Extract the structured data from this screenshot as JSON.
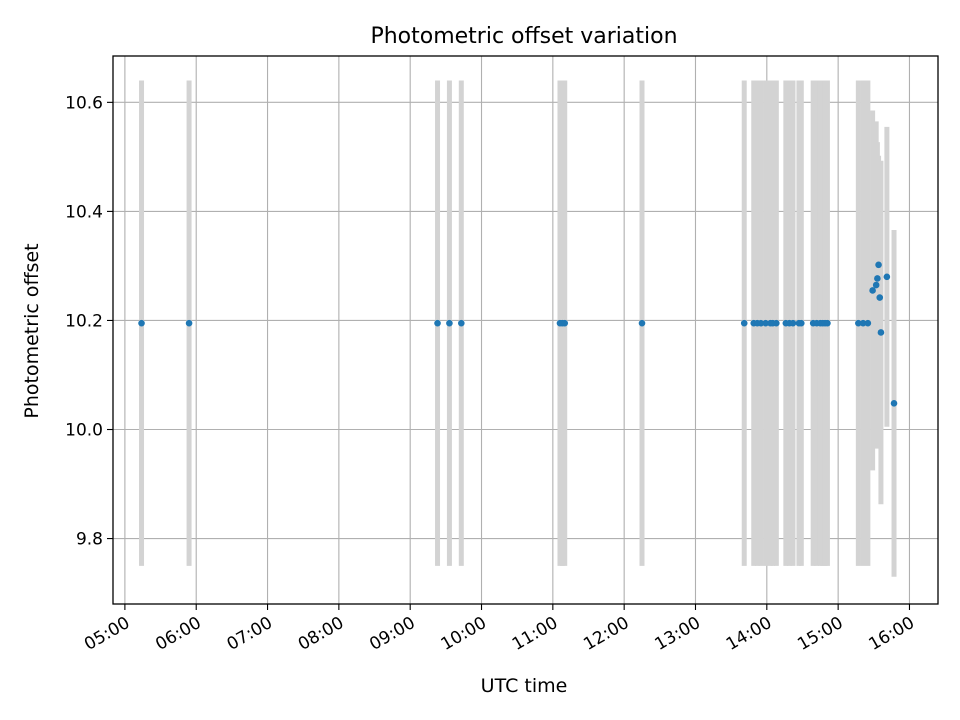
{
  "chart_data": {
    "type": "scatter",
    "title": "Photometric offset variation",
    "xlabel": "UTC time",
    "ylabel": "Photometric offset",
    "xlim": [
      "04:50",
      "16:24"
    ],
    "ylim": [
      9.68,
      10.685
    ],
    "grid": true,
    "x_ticks": [
      "05:00",
      "06:00",
      "07:00",
      "08:00",
      "09:00",
      "10:00",
      "11:00",
      "12:00",
      "13:00",
      "14:00",
      "15:00",
      "16:00"
    ],
    "y_ticks": [
      "9.8",
      "10.0",
      "10.2",
      "10.4",
      "10.6"
    ],
    "colors": {
      "marker": "#1f77b4",
      "errorbar": "#d3d3d3",
      "grid": "#b0b0b0",
      "axes": "#000000"
    },
    "series": [
      {
        "points": [
          {
            "t": "05:14",
            "y": 10.195,
            "err": 0.445
          },
          {
            "t": "05:54",
            "y": 10.195,
            "err": 0.445
          },
          {
            "t": "09:23",
            "y": 10.195,
            "err": 0.445
          },
          {
            "t": "09:33",
            "y": 10.195,
            "err": 0.445
          },
          {
            "t": "09:43",
            "y": 10.195,
            "err": 0.445
          },
          {
            "t": "11:06",
            "y": 10.195,
            "err": 0.445
          },
          {
            "t": "11:08",
            "y": 10.195,
            "err": 0.445
          },
          {
            "t": "11:10",
            "y": 10.195,
            "err": 0.445
          },
          {
            "t": "12:15",
            "y": 10.195,
            "err": 0.445
          },
          {
            "t": "13:41",
            "y": 10.195,
            "err": 0.445
          },
          {
            "t": "13:49",
            "y": 10.195,
            "err": 0.445
          },
          {
            "t": "13:52",
            "y": 10.195,
            "err": 0.445
          },
          {
            "t": "13:55",
            "y": 10.195,
            "err": 0.445
          },
          {
            "t": "13:59",
            "y": 10.195,
            "err": 0.445
          },
          {
            "t": "14:03",
            "y": 10.195,
            "err": 0.445
          },
          {
            "t": "14:05",
            "y": 10.195,
            "err": 0.445
          },
          {
            "t": "14:08",
            "y": 10.195,
            "err": 0.445
          },
          {
            "t": "14:16",
            "y": 10.195,
            "err": 0.445
          },
          {
            "t": "14:19",
            "y": 10.195,
            "err": 0.445
          },
          {
            "t": "14:22",
            "y": 10.195,
            "err": 0.445
          },
          {
            "t": "14:27",
            "y": 10.195,
            "err": 0.445
          },
          {
            "t": "14:29",
            "y": 10.195,
            "err": 0.445
          },
          {
            "t": "14:39",
            "y": 10.195,
            "err": 0.445
          },
          {
            "t": "14:42",
            "y": 10.195,
            "err": 0.445
          },
          {
            "t": "14:45",
            "y": 10.195,
            "err": 0.445
          },
          {
            "t": "14:47",
            "y": 10.195,
            "err": 0.445
          },
          {
            "t": "14:49",
            "y": 10.195,
            "err": 0.445
          },
          {
            "t": "14:51",
            "y": 10.195,
            "err": 0.445
          },
          {
            "t": "15:17",
            "y": 10.195,
            "err": 0.445
          },
          {
            "t": "15:21",
            "y": 10.195,
            "err": 0.445
          },
          {
            "t": "15:25",
            "y": 10.195,
            "err": 0.445
          },
          {
            "t": "15:29",
            "y": 10.255,
            "err": 0.33
          },
          {
            "t": "15:32",
            "y": 10.265,
            "err": 0.3
          },
          {
            "t": "15:33",
            "y": 10.277,
            "err": 0.25
          },
          {
            "t": "15:34",
            "y": 10.302,
            "err": 0.2
          },
          {
            "t": "15:35",
            "y": 10.242,
            "err": 0.25
          },
          {
            "t": "15:36",
            "y": 10.178,
            "err": 0.315
          },
          {
            "t": "15:41",
            "y": 10.28,
            "err": 0.275
          },
          {
            "t": "15:47",
            "y": 10.048,
            "err": 0.318
          }
        ]
      }
    ]
  }
}
